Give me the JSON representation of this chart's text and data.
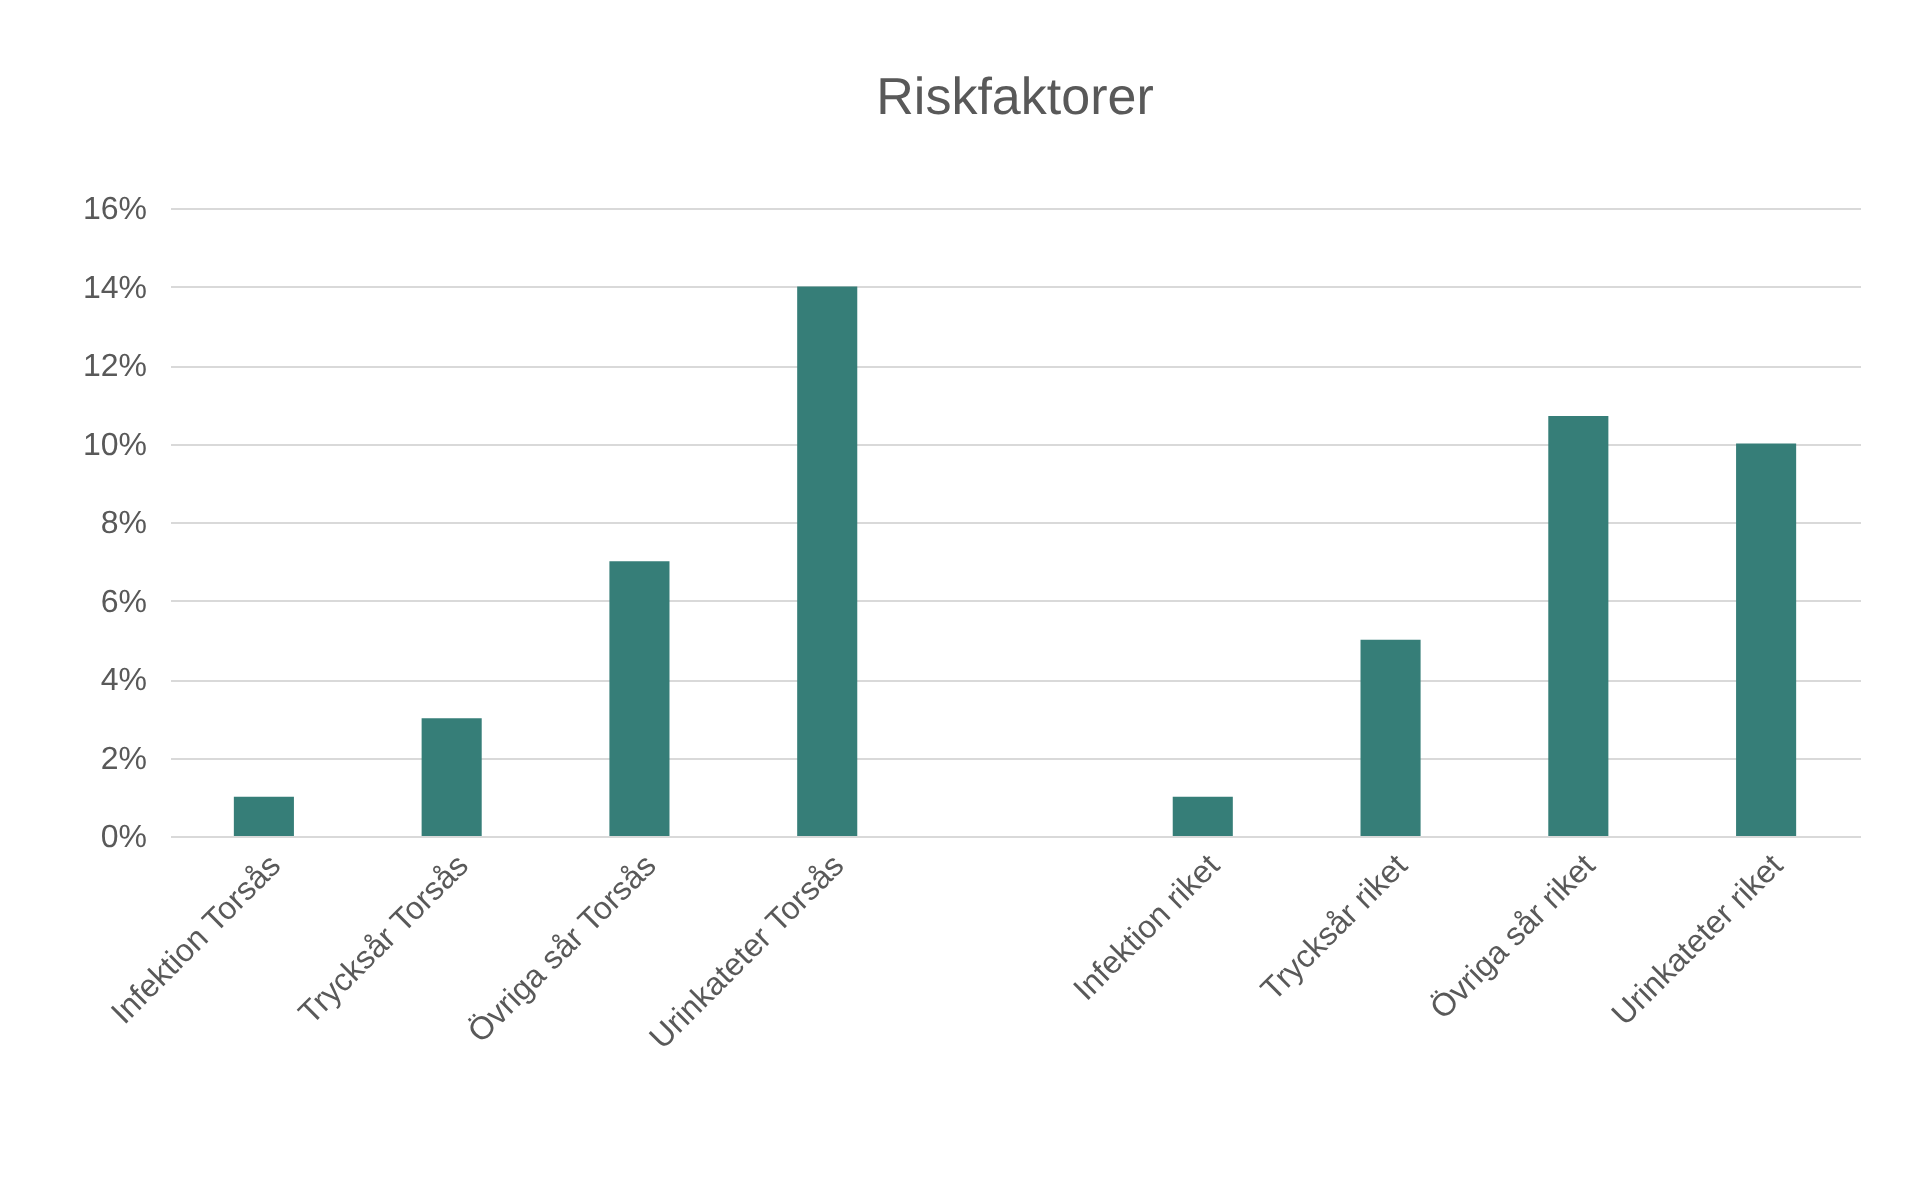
{
  "chart_data": {
    "type": "bar",
    "title": "Riskfaktorer",
    "categories": [
      "Infektion Torsås",
      "Trycksår Torsås",
      "Övriga sår Torsås",
      "Urinkateter Torsås",
      null,
      "Infektion riket",
      "Trycksår riket",
      "Övriga sår riket",
      "Urinkateter riket"
    ],
    "values": [
      1,
      3,
      7,
      14,
      null,
      1,
      5,
      10.7,
      10
    ],
    "color": "#367e78",
    "ylim": [
      0,
      16
    ],
    "yticks": [
      {
        "value": 0,
        "label": "0%"
      },
      {
        "value": 2,
        "label": "2%"
      },
      {
        "value": 4,
        "label": "4%"
      },
      {
        "value": 6,
        "label": "6%"
      },
      {
        "value": 8,
        "label": "8%"
      },
      {
        "value": 10,
        "label": "10%"
      },
      {
        "value": 12,
        "label": "12%"
      },
      {
        "value": 14,
        "label": "14%"
      },
      {
        "value": 16,
        "label": "16%"
      }
    ],
    "grid": "y"
  }
}
